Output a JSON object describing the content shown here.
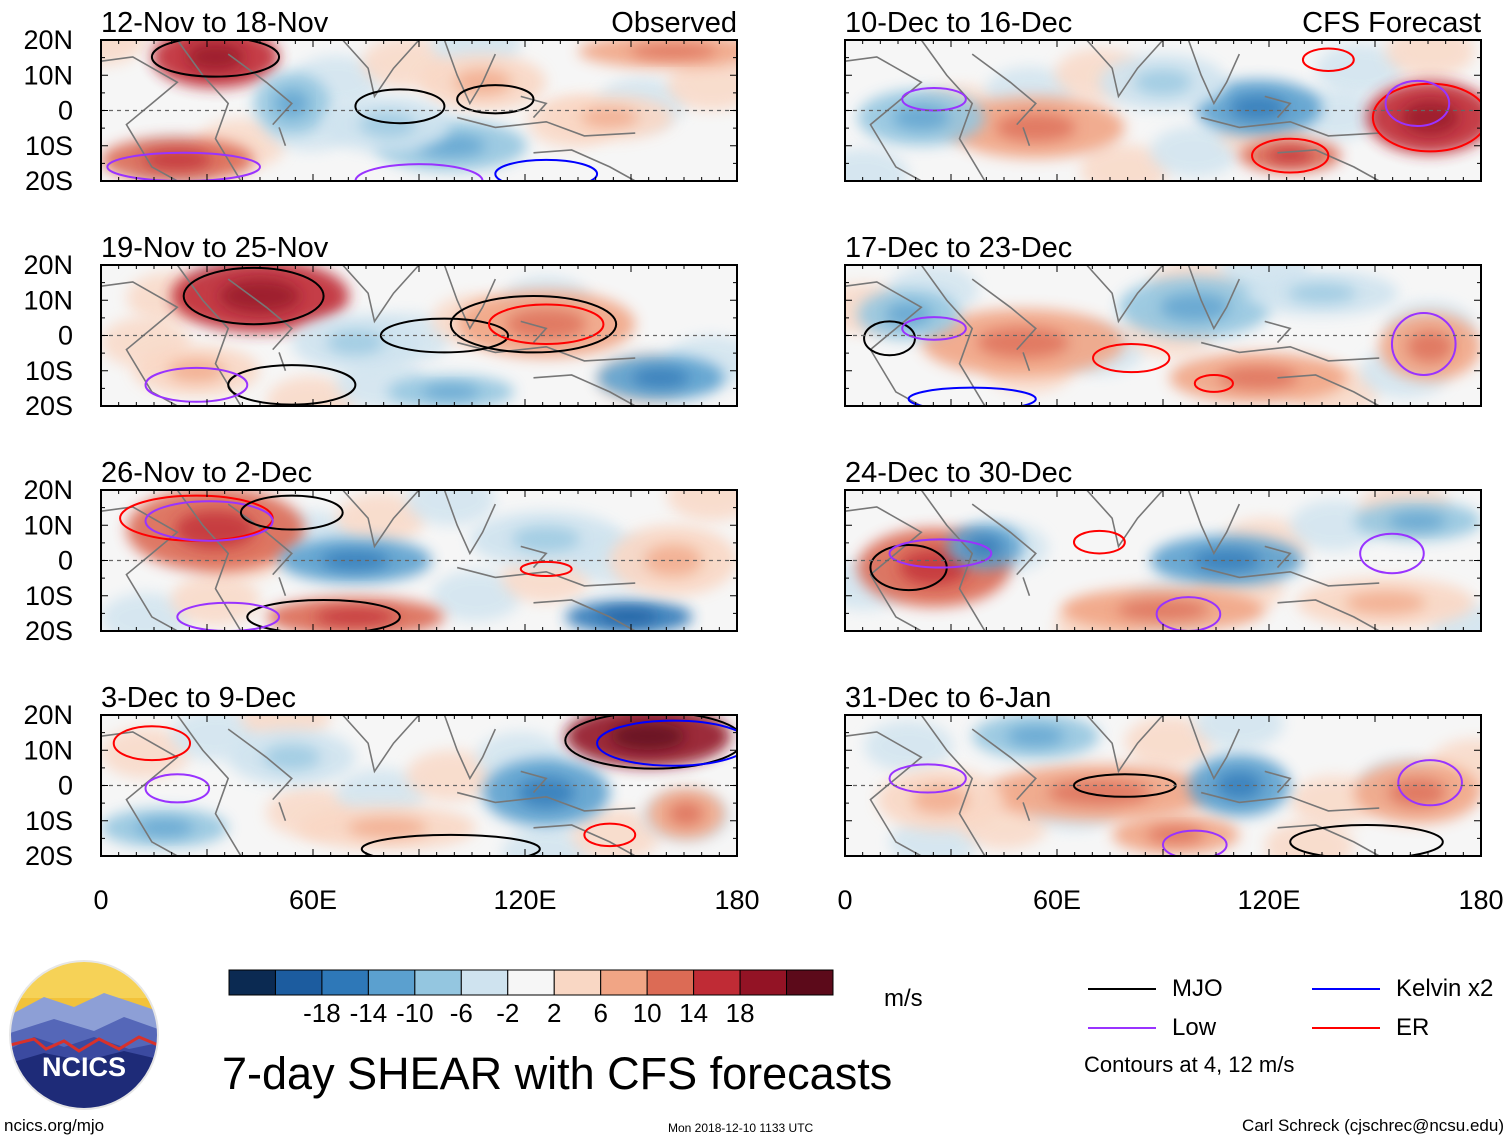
{
  "title": "7-day SHEAR with CFS forecasts",
  "footer": {
    "left": "ncics.org/mjo",
    "center": "Mon 2018-12-10 1133 UTC",
    "right": "Carl Schreck (cjschrec@ncsu.edu)"
  },
  "logo_text": "NCICS",
  "column_labels": {
    "observed": "Observed",
    "forecast": "CFS Forecast"
  },
  "units": "m/s",
  "contour_note": "Contours at 4, 12 m/s",
  "colors": {
    "mjo": "#000000",
    "low": "#9933ff",
    "kelvin": "#0000ff",
    "er": "#ff0000",
    "coast": "#777777"
  },
  "legend": [
    {
      "label": "MJO",
      "color": "#000000"
    },
    {
      "label": "Kelvin x2",
      "color": "#0000ff"
    },
    {
      "label": "Low",
      "color": "#9933ff"
    },
    {
      "label": "ER",
      "color": "#ff0000"
    }
  ],
  "colorbar": {
    "colors": [
      "#0b2a52",
      "#1c5c9f",
      "#2e78b8",
      "#5ba0cf",
      "#94c6e0",
      "#cfe3ef",
      "#f6f6f6",
      "#f9d7c4",
      "#f1a585",
      "#dc6b55",
      "#c02b35",
      "#931325",
      "#5c0a1a"
    ],
    "labels": [
      "-18",
      "-14",
      "-10",
      "-6",
      "-2",
      "2",
      "6",
      "10",
      "14",
      "18"
    ]
  },
  "chart_data": {
    "type": "heatmap",
    "variable": "Wind shear anomaly",
    "xlim": [
      0,
      180
    ],
    "ylim": [
      -20,
      20
    ],
    "x_ticks": [
      "0",
      "60E",
      "120E",
      "180"
    ],
    "y_ticks": [
      "20N",
      "10N",
      "0",
      "10S",
      "20S"
    ],
    "panels": [
      {
        "title": "12-Nov to 18-Nov",
        "column": "observed"
      },
      {
        "title": "19-Nov to 25-Nov",
        "column": "observed"
      },
      {
        "title": "26-Nov to 2-Dec",
        "column": "observed"
      },
      {
        "title": "3-Dec to 9-Dec",
        "column": "observed"
      },
      {
        "title": "10-Dec to 16-Dec",
        "column": "forecast"
      },
      {
        "title": "17-Dec to 23-Dec",
        "column": "forecast"
      },
      {
        "title": "24-Dec to 30-Dec",
        "column": "forecast"
      },
      {
        "title": "31-Dec to 6-Jan",
        "column": "forecast"
      }
    ]
  }
}
